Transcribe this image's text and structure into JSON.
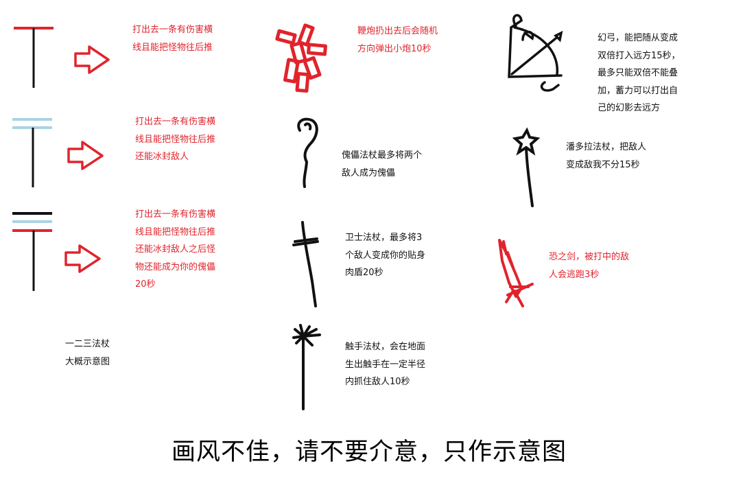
{
  "colors": {
    "red": "#e0242c",
    "light_blue": "#a9d4e2",
    "black": "#111111"
  },
  "staffs": {
    "staff1": {
      "icon": "t-staff-red-icon",
      "text": "打出去一条有伤害横\n线且能把怪物往后推"
    },
    "staff2": {
      "icon": "t-staff-blue-icon",
      "text": "打出去一条有伤害横\n线且能把怪物往后推\n还能冰封敌人"
    },
    "staff3": {
      "icon": "t-staff-combo-icon",
      "text": "打出去一条有伤害横\n线且能把怪物往后推\n还能冰封敌人之后怪\n物还能成为你的傀儡\n20秒"
    },
    "note": "一二三法杖\n大概示意图"
  },
  "items": {
    "firecracker": {
      "icon": "firecracker-icon",
      "text": "鞭炮扔出去后会随机\n方向弹出小炮10秒"
    },
    "puppet_staff": {
      "icon": "puppet-staff-icon",
      "text": "傀儡法杖最多将两个\n敌人成为傀儡"
    },
    "guard_staff": {
      "icon": "guard-staff-icon",
      "text": "卫士法杖，最多将3\n个敌人变成你的贴身\n肉盾20秒"
    },
    "tentacle_staff": {
      "icon": "tentacle-staff-icon",
      "text": "触手法杖，会在地面\n生出触手在一定半径\n内抓住敌人10秒"
    },
    "phantom_bow": {
      "icon": "phantom-bow-icon",
      "text": "幻弓，能把随从变成\n双倍打入远方15秒，\n最多只能双倍不能叠\n加，蓄力可以打出自\n己的幻影去远方"
    },
    "pandora_staff": {
      "icon": "pandora-staff-icon",
      "text": "潘多拉法杖，把敌人\n变成敌我不分15秒"
    },
    "fear_sword": {
      "icon": "fear-sword-icon",
      "text": "恐之剑，被打中的敌\n人会逃跑3秒"
    }
  },
  "caption": "画风不佳，请不要介意，只作示意图"
}
